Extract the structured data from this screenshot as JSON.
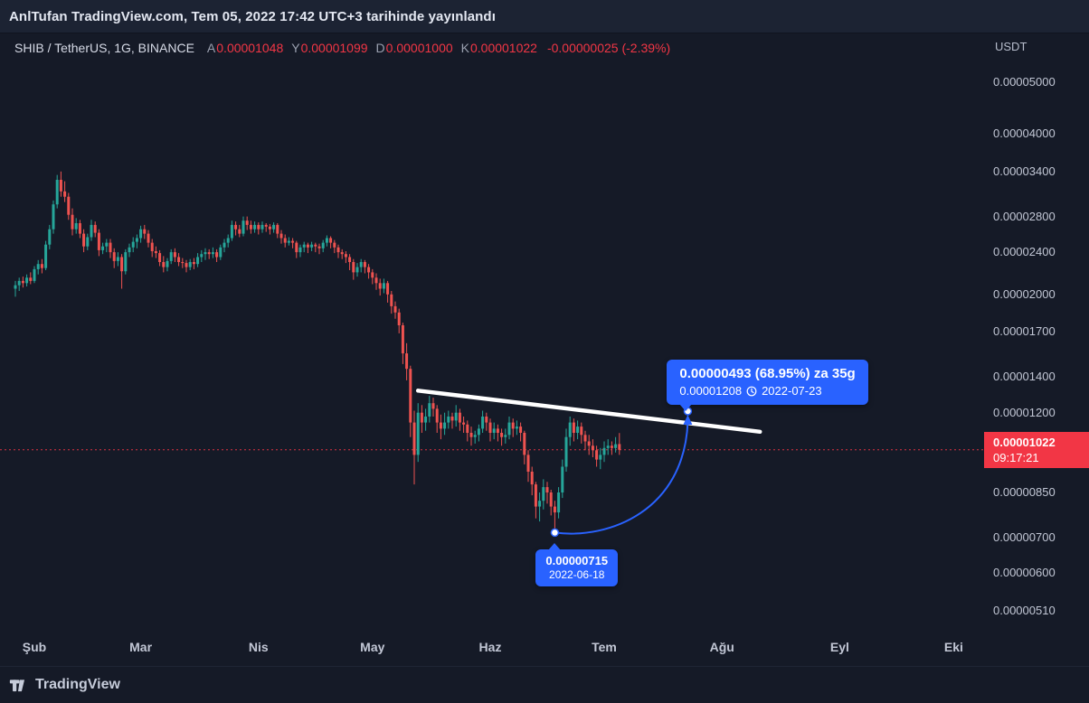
{
  "banner": {
    "text": "AnlTufan TradingView.com, Tem 05, 2022 17:42 UTC+3 tarihinde yayınlandı"
  },
  "legend": {
    "symbol": "SHIB / TetherUS, 1G, BINANCE",
    "ohlc": [
      {
        "key": "A",
        "value": "0.00001048"
      },
      {
        "key": "Y",
        "value": "0.00001099"
      },
      {
        "key": "D",
        "value": "0.00001000"
      },
      {
        "key": "K",
        "value": "0.00001022"
      }
    ],
    "change": "-0.00000025 (-2.39%)"
  },
  "quote_currency": "USDT",
  "price_label": {
    "price": "0.00001022",
    "countdown": "09:17:21"
  },
  "footer": {
    "brand": "TradingView"
  },
  "colors": {
    "up": "#26a69a",
    "down": "#ef5350",
    "accent": "#2962ff",
    "price_line": "#f23645",
    "trendline": "#ffffff"
  },
  "chart_data": {
    "type": "candlestick",
    "symbol": "SHIB/USDT",
    "timeframe": "1G",
    "exchange": "BINANCE",
    "scale": "log",
    "price_unit": 1e-08,
    "start_date": "2022-01-27",
    "y_range_units": [
      500,
      5500
    ],
    "current_price": 1022,
    "y_ticks": [
      {
        "label": "0.00005000",
        "value": 5000
      },
      {
        "label": "0.00004000",
        "value": 4000
      },
      {
        "label": "0.00003400",
        "value": 3400
      },
      {
        "label": "0.00002800",
        "value": 2800
      },
      {
        "label": "0.00002400",
        "value": 2400
      },
      {
        "label": "0.00002000",
        "value": 2000
      },
      {
        "label": "0.00001700",
        "value": 1700
      },
      {
        "label": "0.00001400",
        "value": 1400
      },
      {
        "label": "0.00001200",
        "value": 1200
      },
      {
        "label": "0.00000850",
        "value": 850
      },
      {
        "label": "0.00000700",
        "value": 700
      },
      {
        "label": "0.00000600",
        "value": 600
      },
      {
        "label": "0.00000510",
        "value": 510
      }
    ],
    "x_ticks": [
      {
        "label": "Şub",
        "index": 5
      },
      {
        "label": "Mar",
        "index": 33
      },
      {
        "label": "Nis",
        "index": 64
      },
      {
        "label": "May",
        "index": 94
      },
      {
        "label": "Haz",
        "index": 125
      },
      {
        "label": "Tem",
        "index": 155
      },
      {
        "label": "Ağu",
        "index": 186
      },
      {
        "label": "Eyl",
        "index": 217
      },
      {
        "label": "Eki",
        "index": 247
      }
    ],
    "trendline": {
      "from": {
        "index": 106,
        "price": 1320
      },
      "to": {
        "index": 196,
        "price": 1105
      }
    },
    "projection": {
      "from": {
        "index": 142,
        "price": 715,
        "date": "2022-06-18"
      },
      "to": {
        "index": 177,
        "price": 1208,
        "date": "2022-07-23"
      },
      "tooltip": {
        "headline": "0.00000493 (68.95%) za 35g",
        "price": "0.00001208",
        "date": "2022-07-23"
      },
      "origin_label": {
        "price": "0.00000715",
        "date": "2022-06-18"
      }
    },
    "candles": [
      [
        2050,
        2120,
        1980,
        2080
      ],
      [
        2080,
        2150,
        2030,
        2120
      ],
      [
        2120,
        2160,
        2060,
        2100
      ],
      [
        2100,
        2180,
        2070,
        2150
      ],
      [
        2150,
        2200,
        2090,
        2120
      ],
      [
        2120,
        2260,
        2100,
        2230
      ],
      [
        2230,
        2320,
        2180,
        2280
      ],
      [
        2280,
        2330,
        2190,
        2240
      ],
      [
        2240,
        2520,
        2220,
        2480
      ],
      [
        2480,
        2700,
        2430,
        2650
      ],
      [
        2650,
        3000,
        2600,
        2950
      ],
      [
        2950,
        3350,
        2900,
        3280
      ],
      [
        3280,
        3400,
        3050,
        3120
      ],
      [
        3120,
        3260,
        2980,
        3050
      ],
      [
        3050,
        3100,
        2760,
        2820
      ],
      [
        2820,
        2900,
        2580,
        2650
      ],
      [
        2650,
        2780,
        2600,
        2720
      ],
      [
        2720,
        2760,
        2550,
        2600
      ],
      [
        2600,
        2650,
        2400,
        2460
      ],
      [
        2460,
        2600,
        2420,
        2560
      ],
      [
        2560,
        2760,
        2520,
        2700
      ],
      [
        2700,
        2740,
        2560,
        2610
      ],
      [
        2610,
        2650,
        2360,
        2420
      ],
      [
        2420,
        2500,
        2380,
        2460
      ],
      [
        2460,
        2540,
        2400,
        2500
      ],
      [
        2500,
        2540,
        2340,
        2400
      ],
      [
        2400,
        2440,
        2240,
        2310
      ],
      [
        2310,
        2400,
        2260,
        2350
      ],
      [
        2350,
        2380,
        2050,
        2210
      ],
      [
        2210,
        2430,
        2180,
        2400
      ],
      [
        2400,
        2490,
        2350,
        2450
      ],
      [
        2450,
        2560,
        2400,
        2510
      ],
      [
        2510,
        2590,
        2440,
        2550
      ],
      [
        2550,
        2690,
        2500,
        2650
      ],
      [
        2650,
        2700,
        2540,
        2600
      ],
      [
        2600,
        2640,
        2450,
        2500
      ],
      [
        2500,
        2540,
        2350,
        2410
      ],
      [
        2410,
        2460,
        2340,
        2390
      ],
      [
        2390,
        2420,
        2260,
        2300
      ],
      [
        2300,
        2360,
        2200,
        2250
      ],
      [
        2250,
        2340,
        2210,
        2310
      ],
      [
        2310,
        2430,
        2280,
        2400
      ],
      [
        2400,
        2440,
        2300,
        2350
      ],
      [
        2350,
        2390,
        2260,
        2300
      ],
      [
        2300,
        2340,
        2240,
        2290
      ],
      [
        2290,
        2320,
        2200,
        2250
      ],
      [
        2250,
        2330,
        2220,
        2300
      ],
      [
        2300,
        2340,
        2230,
        2280
      ],
      [
        2280,
        2390,
        2250,
        2350
      ],
      [
        2350,
        2420,
        2300,
        2380
      ],
      [
        2380,
        2440,
        2320,
        2400
      ],
      [
        2400,
        2430,
        2330,
        2380
      ],
      [
        2380,
        2450,
        2340,
        2400
      ],
      [
        2400,
        2430,
        2300,
        2350
      ],
      [
        2350,
        2480,
        2320,
        2450
      ],
      [
        2450,
        2540,
        2400,
        2500
      ],
      [
        2500,
        2590,
        2450,
        2550
      ],
      [
        2550,
        2750,
        2520,
        2700
      ],
      [
        2700,
        2740,
        2580,
        2650
      ],
      [
        2650,
        2700,
        2560,
        2600
      ],
      [
        2600,
        2800,
        2570,
        2750
      ],
      [
        2750,
        2800,
        2640,
        2700
      ],
      [
        2700,
        2750,
        2600,
        2650
      ],
      [
        2650,
        2740,
        2610,
        2700
      ],
      [
        2700,
        2730,
        2590,
        2650
      ],
      [
        2650,
        2740,
        2610,
        2700
      ],
      [
        2700,
        2720,
        2620,
        2680
      ],
      [
        2680,
        2710,
        2590,
        2650
      ],
      [
        2650,
        2730,
        2610,
        2700
      ],
      [
        2700,
        2720,
        2550,
        2600
      ],
      [
        2600,
        2640,
        2490,
        2550
      ],
      [
        2550,
        2590,
        2450,
        2500
      ],
      [
        2500,
        2560,
        2470,
        2520
      ],
      [
        2520,
        2550,
        2440,
        2500
      ],
      [
        2500,
        2520,
        2340,
        2400
      ],
      [
        2400,
        2480,
        2350,
        2450
      ],
      [
        2450,
        2510,
        2400,
        2480
      ],
      [
        2480,
        2500,
        2390,
        2450
      ],
      [
        2450,
        2510,
        2410,
        2480
      ],
      [
        2480,
        2500,
        2400,
        2460
      ],
      [
        2460,
        2490,
        2380,
        2440
      ],
      [
        2440,
        2530,
        2400,
        2500
      ],
      [
        2500,
        2580,
        2460,
        2550
      ],
      [
        2550,
        2570,
        2440,
        2500
      ],
      [
        2500,
        2530,
        2390,
        2450
      ],
      [
        2450,
        2480,
        2340,
        2400
      ],
      [
        2400,
        2430,
        2330,
        2380
      ],
      [
        2380,
        2410,
        2290,
        2350
      ],
      [
        2350,
        2380,
        2220,
        2300
      ],
      [
        2300,
        2330,
        2130,
        2200
      ],
      [
        2200,
        2290,
        2160,
        2250
      ],
      [
        2250,
        2330,
        2200,
        2300
      ],
      [
        2300,
        2320,
        2190,
        2250
      ],
      [
        2250,
        2280,
        2140,
        2200
      ],
      [
        2200,
        2230,
        2090,
        2150
      ],
      [
        2150,
        2190,
        2040,
        2100
      ],
      [
        2100,
        2140,
        1990,
        2050
      ],
      [
        2050,
        2140,
        2010,
        2100
      ],
      [
        2100,
        2120,
        1930,
        2000
      ],
      [
        2000,
        2030,
        1840,
        1900
      ],
      [
        1900,
        1940,
        1800,
        1850
      ],
      [
        1850,
        1880,
        1690,
        1750
      ],
      [
        1750,
        1770,
        1480,
        1550
      ],
      [
        1550,
        1620,
        1380,
        1450
      ],
      [
        1450,
        1470,
        1080,
        1150
      ],
      [
        1150,
        1210,
        880,
        1000
      ],
      [
        1000,
        1250,
        970,
        1200
      ],
      [
        1200,
        1240,
        1100,
        1150
      ],
      [
        1150,
        1220,
        1110,
        1180
      ],
      [
        1180,
        1290,
        1150,
        1250
      ],
      [
        1250,
        1280,
        1180,
        1220
      ],
      [
        1220,
        1240,
        1100,
        1150
      ],
      [
        1150,
        1190,
        1070,
        1120
      ],
      [
        1120,
        1200,
        1090,
        1150
      ],
      [
        1150,
        1210,
        1120,
        1180
      ],
      [
        1180,
        1200,
        1120,
        1160
      ],
      [
        1160,
        1240,
        1130,
        1200
      ],
      [
        1200,
        1220,
        1110,
        1150
      ],
      [
        1150,
        1180,
        1100,
        1140
      ],
      [
        1140,
        1160,
        1060,
        1100
      ],
      [
        1100,
        1130,
        1040,
        1080
      ],
      [
        1080,
        1110,
        1050,
        1090
      ],
      [
        1090,
        1140,
        1060,
        1120
      ],
      [
        1120,
        1210,
        1100,
        1180
      ],
      [
        1180,
        1200,
        1110,
        1150
      ],
      [
        1150,
        1170,
        1060,
        1100
      ],
      [
        1100,
        1150,
        1070,
        1120
      ],
      [
        1120,
        1140,
        1060,
        1100
      ],
      [
        1100,
        1120,
        1040,
        1080
      ],
      [
        1080,
        1120,
        1050,
        1090
      ],
      [
        1090,
        1180,
        1070,
        1150
      ],
      [
        1150,
        1170,
        1080,
        1120
      ],
      [
        1120,
        1160,
        1090,
        1130
      ],
      [
        1130,
        1150,
        1060,
        1100
      ],
      [
        1100,
        1110,
        960,
        1000
      ],
      [
        1000,
        1020,
        890,
        930
      ],
      [
        930,
        950,
        840,
        880
      ],
      [
        880,
        890,
        760,
        800
      ],
      [
        800,
        850,
        750,
        820
      ],
      [
        820,
        900,
        790,
        870
      ],
      [
        870,
        890,
        810,
        850
      ],
      [
        850,
        860,
        770,
        800
      ],
      [
        800,
        820,
        715,
        780
      ],
      [
        780,
        870,
        760,
        850
      ],
      [
        850,
        980,
        830,
        950
      ],
      [
        950,
        1120,
        930,
        1080
      ],
      [
        1080,
        1180,
        1040,
        1150
      ],
      [
        1150,
        1170,
        1060,
        1100
      ],
      [
        1100,
        1160,
        1070,
        1130
      ],
      [
        1130,
        1150,
        1050,
        1090
      ],
      [
        1090,
        1110,
        1020,
        1060
      ],
      [
        1060,
        1090,
        1000,
        1040
      ],
      [
        1040,
        1070,
        990,
        1020
      ],
      [
        1020,
        1040,
        950,
        980
      ],
      [
        980,
        1030,
        940,
        1000
      ],
      [
        1000,
        1060,
        970,
        1030
      ],
      [
        1030,
        1070,
        1000,
        1040
      ],
      [
        1040,
        1060,
        1000,
        1030
      ],
      [
        1030,
        1080,
        1010,
        1047
      ],
      [
        1048,
        1099,
        1000,
        1022
      ]
    ]
  }
}
